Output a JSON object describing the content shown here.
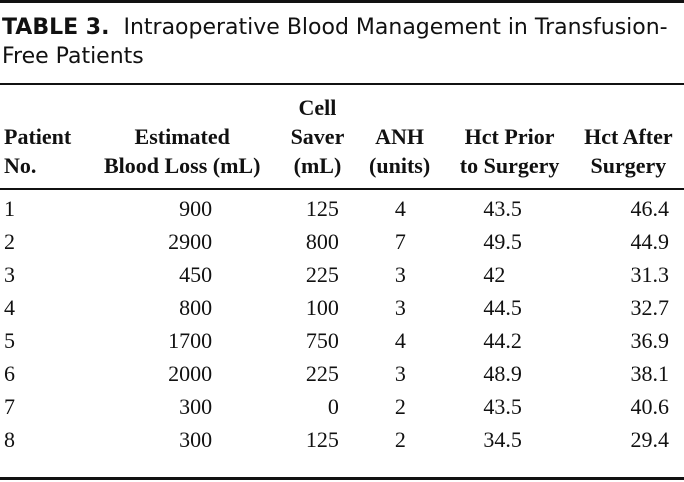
{
  "caption": {
    "label": "TABLE 3.",
    "text": "Intraoperative Blood Management in Transfusion-Free Patients"
  },
  "table": {
    "headers": [
      [
        "Patient",
        "No."
      ],
      [
        "Estimated",
        "Blood Loss (mL)"
      ],
      [
        "Cell",
        "Saver",
        "(mL)"
      ],
      [
        "ANH",
        "(units)"
      ],
      [
        "Hct Prior",
        "to Surgery"
      ],
      [
        "Hct After",
        "Surgery"
      ]
    ],
    "rows": [
      [
        "1",
        "900",
        "125",
        "4",
        "43.5",
        "46.4"
      ],
      [
        "2",
        "2900",
        "800",
        "7",
        "49.5",
        "44.9"
      ],
      [
        "3",
        "450",
        "225",
        "3",
        "42",
        "31.3"
      ],
      [
        "4",
        "800",
        "100",
        "3",
        "44.5",
        "32.7"
      ],
      [
        "5",
        "1700",
        "750",
        "4",
        "44.2",
        "36.9"
      ],
      [
        "6",
        "2000",
        "225",
        "3",
        "48.9",
        "38.1"
      ],
      [
        "7",
        "300",
        "0",
        "2",
        "43.5",
        "40.6"
      ],
      [
        "8",
        "300",
        "125",
        "2",
        "34.5",
        "29.4"
      ]
    ]
  }
}
